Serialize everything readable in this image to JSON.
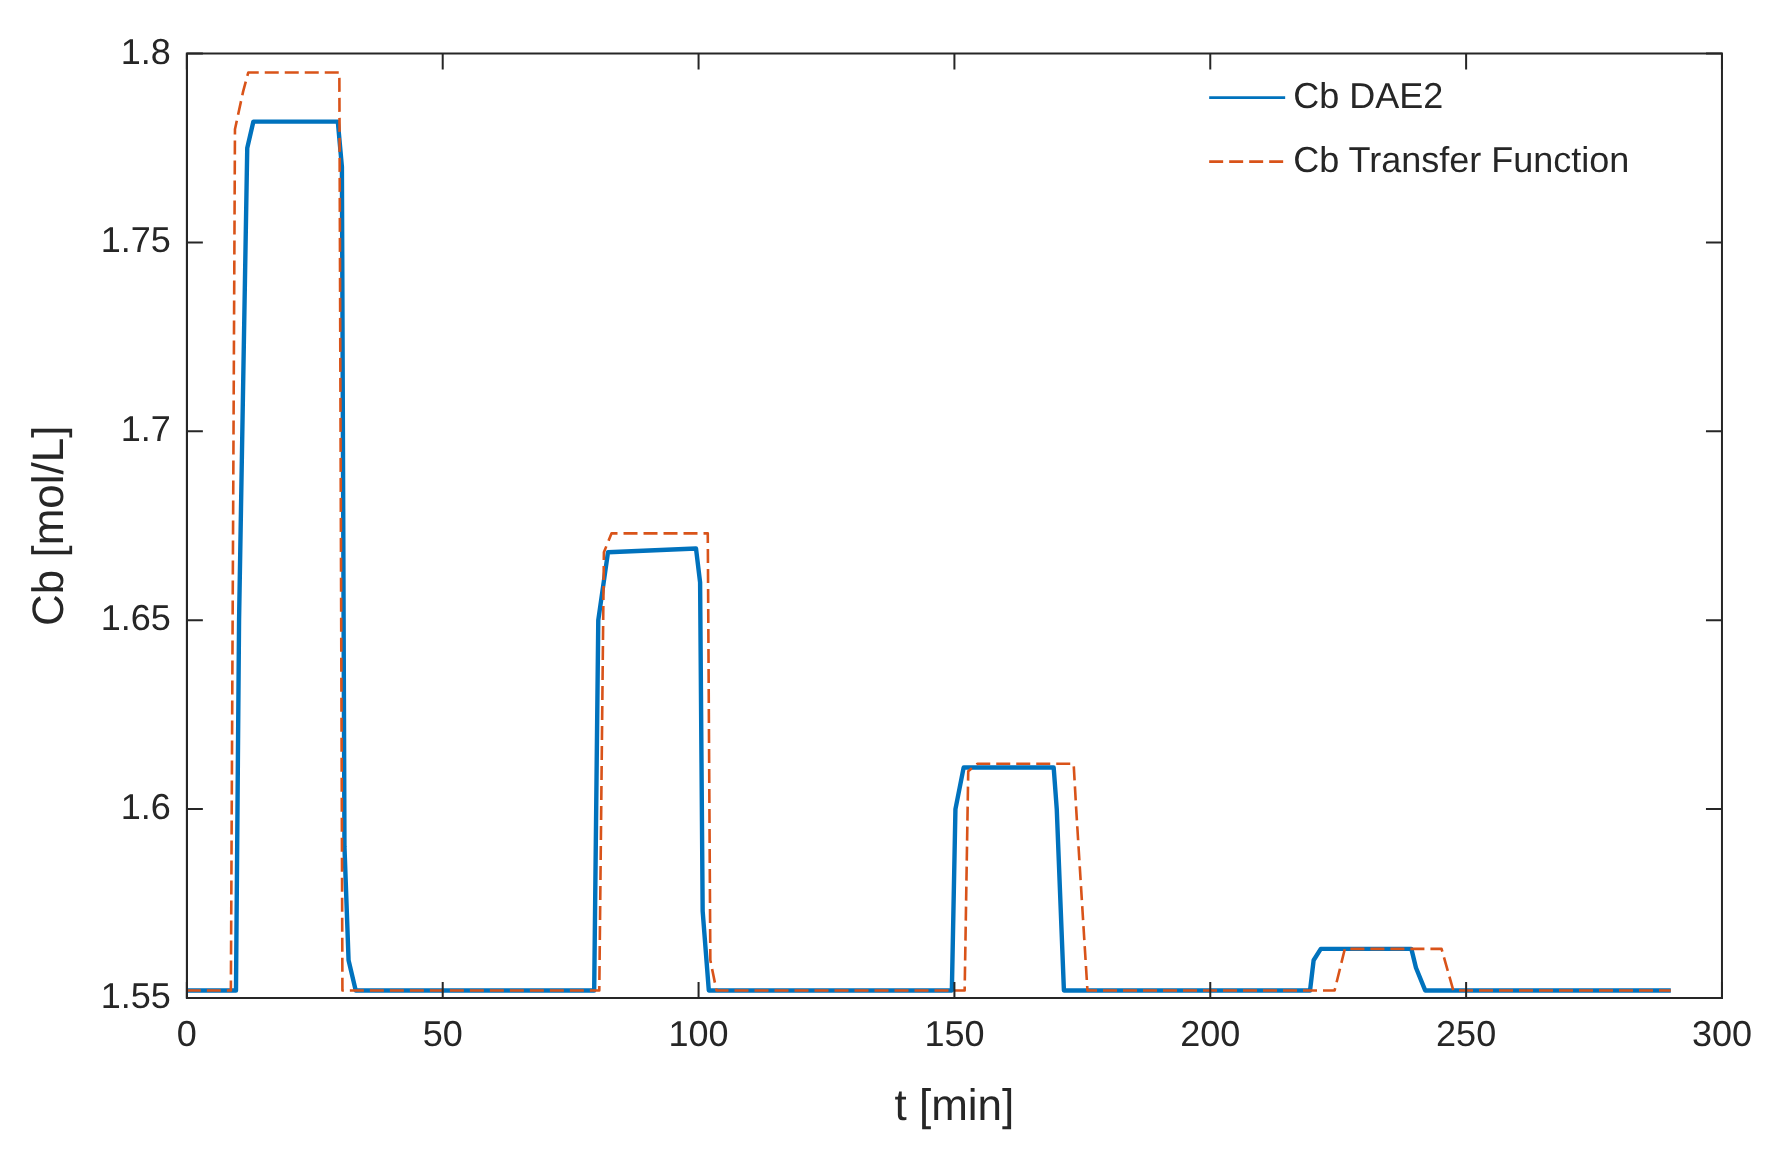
{
  "chart_data": {
    "type": "line",
    "xlabel": "t [min]",
    "ylabel": "Cb [mol/L]",
    "xlim": [
      0,
      300
    ],
    "ylim": [
      1.55,
      1.8
    ],
    "xticks": [
      0,
      50,
      100,
      150,
      200,
      250,
      300
    ],
    "yticks": [
      1.55,
      1.6,
      1.65,
      1.7,
      1.75,
      1.8
    ],
    "grid": false,
    "legend": "top right",
    "marker": "none",
    "series": [
      {
        "name": "Cb DAE2",
        "color": "#0072bd",
        "line_style": "solid",
        "x": [
          0,
          9.6,
          10.2,
          11.8,
          13,
          29.5,
          30.3,
          30.8,
          31.6,
          33,
          79.6,
          80.4,
          82.3,
          99.5,
          100.3,
          100.8,
          102,
          149.5,
          150.2,
          151.8,
          169.4,
          170,
          171.4,
          219.5,
          220.2,
          221.6,
          239.3,
          240.2,
          242,
          290
        ],
        "values": [
          1.552,
          1.552,
          1.65,
          1.775,
          1.782,
          1.782,
          1.77,
          1.59,
          1.56,
          1.552,
          1.552,
          1.65,
          1.668,
          1.669,
          1.66,
          1.573,
          1.552,
          1.552,
          1.6,
          1.611,
          1.611,
          1.6,
          1.552,
          1.552,
          1.56,
          1.563,
          1.563,
          1.558,
          1.552,
          1.552
        ]
      },
      {
        "name": "Cb Transfer Function",
        "color": "#d95319",
        "line_style": "dashed",
        "x": [
          0,
          8.6,
          9.4,
          11,
          12,
          29.8,
          30.4,
          33,
          80.6,
          81.5,
          83,
          101.8,
          102.3,
          103.5,
          152,
          152.7,
          154.5,
          173.3,
          173.8,
          176,
          224.3,
          226.3,
          245.2,
          247.5,
          290
        ],
        "values": [
          1.552,
          1.552,
          1.78,
          1.79,
          1.795,
          1.795,
          1.552,
          1.552,
          1.552,
          1.668,
          1.673,
          1.673,
          1.56,
          1.552,
          1.552,
          1.61,
          1.612,
          1.612,
          1.6,
          1.552,
          1.552,
          1.563,
          1.563,
          1.552,
          1.552
        ]
      }
    ]
  }
}
